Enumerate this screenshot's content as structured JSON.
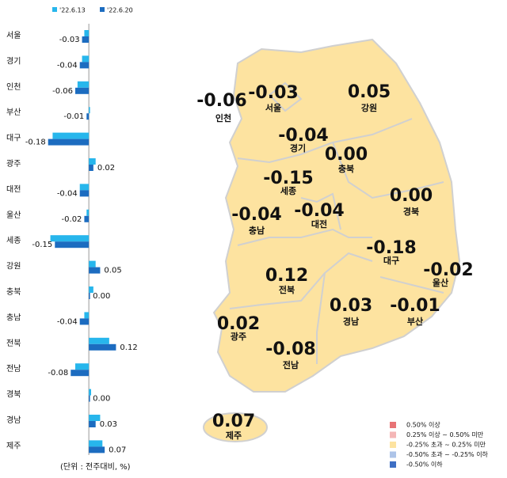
{
  "chart_data": {
    "type": "bar",
    "orientation": "horizontal",
    "categories": [
      "서울",
      "경기",
      "인천",
      "부산",
      "대구",
      "광주",
      "대전",
      "울산",
      "세종",
      "강원",
      "충북",
      "충남",
      "전북",
      "전남",
      "경북",
      "경남",
      "제주"
    ],
    "series": [
      {
        "name": "'22.6.13",
        "color": "#27b6ec",
        "values": [
          -0.02,
          -0.03,
          -0.05,
          0,
          -0.16,
          0.03,
          -0.04,
          -0.01,
          -0.17,
          0.03,
          0.02,
          -0.02,
          0.09,
          -0.06,
          0.01,
          0.05,
          0.06
        ]
      },
      {
        "name": "'22.6.20",
        "color": "#1c6cc0",
        "values": [
          -0.03,
          -0.04,
          -0.06,
          -0.01,
          -0.18,
          0.02,
          -0.04,
          -0.02,
          -0.15,
          0.05,
          0,
          -0.04,
          0.12,
          -0.08,
          0,
          0.03,
          0.07
        ],
        "value_labels": [
          "-0.03",
          "-0.04",
          "-0.06",
          "-0.01",
          "-0.18",
          "0.02",
          "-0.04",
          "-0.02",
          "-0.15",
          "0.05",
          "0.00",
          "-0.04",
          "0.12",
          "-0.08",
          "0.00",
          "0.03",
          "0.07"
        ]
      }
    ],
    "xlim": [
      -0.2,
      0.15
    ],
    "note": "(단위 : 전주대비, %)"
  },
  "map": {
    "legend": [
      {
        "color": "#e87476",
        "label": "0.50% 이상"
      },
      {
        "color": "#f4b6b6",
        "label": "0.25% 이상 ~ 0.50% 미만"
      },
      {
        "color": "#fde3a0",
        "label": "-0.25% 초과 ~ 0.25% 미만"
      },
      {
        "color": "#adc4e8",
        "label": "-0.50% 초과 ~ -0.25% 이하"
      },
      {
        "color": "#3e6fc4",
        "label": "-0.50% 이하"
      }
    ]
  }
}
